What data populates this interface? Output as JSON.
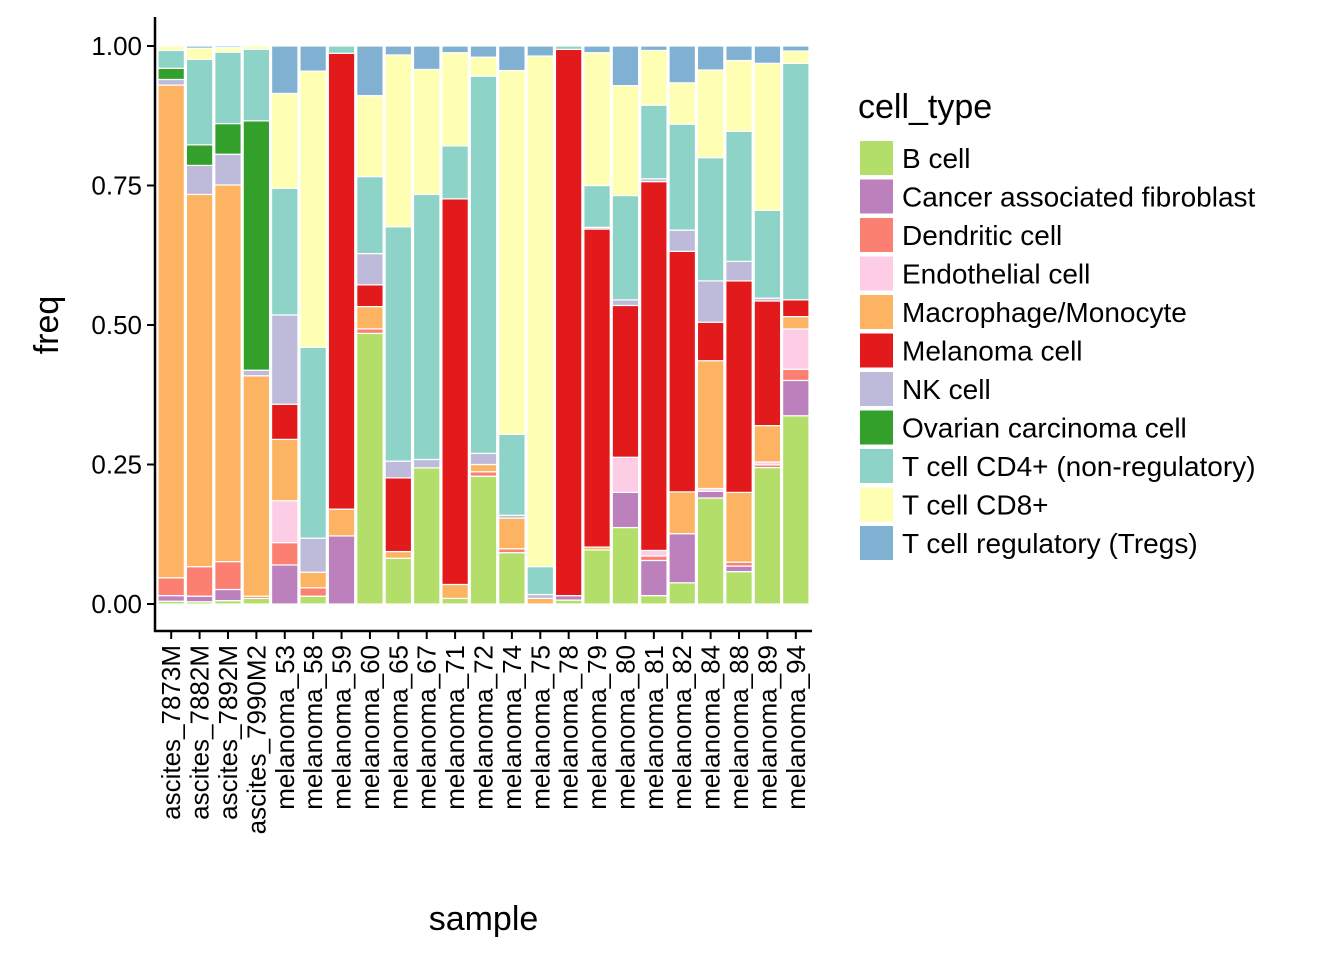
{
  "chart_data": {
    "type": "bar",
    "stacked": true,
    "title": "",
    "xlabel": "sample",
    "ylabel": "freq",
    "ylim": [
      0,
      1
    ],
    "yticks": [
      "0.00",
      "0.25",
      "0.50",
      "0.75",
      "1.00"
    ],
    "grid": false,
    "legend_position": "right",
    "legend_title": "cell_type",
    "categories": [
      "ascites_7873M",
      "ascites_7882M",
      "ascites_7892M",
      "ascites_7990M2",
      "melanoma_53",
      "melanoma_58",
      "melanoma_59",
      "melanoma_60",
      "melanoma_65",
      "melanoma_67",
      "melanoma_71",
      "melanoma_72",
      "melanoma_74",
      "melanoma_75",
      "melanoma_78",
      "melanoma_79",
      "melanoma_80",
      "melanoma_81",
      "melanoma_82",
      "melanoma_84",
      "melanoma_88",
      "melanoma_89",
      "melanoma_94"
    ],
    "series": [
      {
        "name": "B cell",
        "color": "#b3de69",
        "values": [
          0.005,
          0.004,
          0.006,
          0.01,
          0,
          0.014,
          0,
          0.485,
          0.082,
          0.244,
          0.01,
          0.229,
          0.092,
          0,
          0.007,
          0.097,
          0.137,
          0.015,
          0.038,
          0.19,
          0.058,
          0.244,
          0.336
        ]
      },
      {
        "name": "Cancer associated fibroblast",
        "color": "#bc80bd",
        "values": [
          0.01,
          0.01,
          0.02,
          0,
          0.07,
          0,
          0.122,
          0,
          0,
          0,
          0,
          0,
          0,
          0,
          0.008,
          0,
          0.063,
          0.063,
          0.088,
          0.012,
          0.01,
          0,
          0.063
        ]
      },
      {
        "name": "Dendritic cell",
        "color": "#fb8072",
        "values": [
          0.032,
          0.053,
          0.05,
          0.004,
          0.04,
          0.015,
          0,
          0.008,
          0,
          0,
          0,
          0.008,
          0.007,
          0,
          0,
          0,
          0,
          0.008,
          0,
          0,
          0.007,
          0.005,
          0.02
        ]
      },
      {
        "name": "Endothelial cell",
        "color": "#fccde5",
        "values": [
          0,
          0,
          0,
          0,
          0.075,
          0,
          0,
          0,
          0,
          0,
          0,
          0,
          0,
          0,
          0,
          0,
          0.063,
          0.01,
          0,
          0.005,
          0,
          0.005,
          0.072
        ]
      },
      {
        "name": "Macrophage/Monocyte",
        "color": "#fdb462",
        "values": [
          0.883,
          0.667,
          0.675,
          0.395,
          0.11,
          0.028,
          0.048,
          0.04,
          0.012,
          0,
          0.025,
          0.013,
          0.055,
          0.01,
          0,
          0.005,
          0,
          0,
          0.075,
          0.229,
          0.125,
          0.065,
          0.022
        ]
      },
      {
        "name": "Melanoma cell",
        "color": "#e31a1c",
        "values": [
          0,
          0,
          0,
          0,
          0.063,
          0,
          0.817,
          0.039,
          0.132,
          0,
          0.691,
          0,
          0,
          0,
          0.979,
          0.57,
          0.272,
          0.661,
          0.431,
          0.069,
          0.379,
          0.223,
          0.03
        ]
      },
      {
        "name": "NK cell",
        "color": "#bebada",
        "values": [
          0.01,
          0.052,
          0.055,
          0.01,
          0.16,
          0.061,
          0,
          0.056,
          0.03,
          0.015,
          0,
          0.02,
          0.005,
          0.007,
          0,
          0.003,
          0.01,
          0.005,
          0.038,
          0.074,
          0.035,
          0.005,
          0
        ]
      },
      {
        "name": "Ovarian carcinoma cell",
        "color": "#33a02c",
        "values": [
          0.02,
          0.037,
          0.055,
          0.447,
          0,
          0,
          0,
          0,
          0,
          0,
          0,
          0,
          0,
          0,
          0,
          0,
          0,
          0,
          0,
          0,
          0,
          0,
          0
        ]
      },
      {
        "name": "T cell CD4+ (non-regulatory)",
        "color": "#8dd3c7",
        "values": [
          0.032,
          0.153,
          0.128,
          0.128,
          0.227,
          0.342,
          0.013,
          0.138,
          0.42,
          0.475,
          0.095,
          0.676,
          0.145,
          0.05,
          0.006,
          0.075,
          0.187,
          0.132,
          0.19,
          0.221,
          0.233,
          0.157,
          0.422
        ]
      },
      {
        "name": "T cell CD8+",
        "color": "#ffffb3",
        "values": [
          0.008,
          0.02,
          0.008,
          0.006,
          0.17,
          0.495,
          0,
          0.145,
          0.308,
          0.224,
          0.167,
          0.034,
          0.652,
          0.915,
          0,
          0.238,
          0.197,
          0.098,
          0.074,
          0.157,
          0.127,
          0.263,
          0.022
        ]
      },
      {
        "name": "T cell regulatory (Tregs)",
        "color": "#80b1d3",
        "values": [
          0,
          0.004,
          0.003,
          0,
          0.085,
          0.045,
          0,
          0.089,
          0.016,
          0.042,
          0.012,
          0.02,
          0.044,
          0.018,
          0,
          0.012,
          0.071,
          0.008,
          0.066,
          0.043,
          0.026,
          0.031,
          0.009
        ]
      }
    ]
  }
}
